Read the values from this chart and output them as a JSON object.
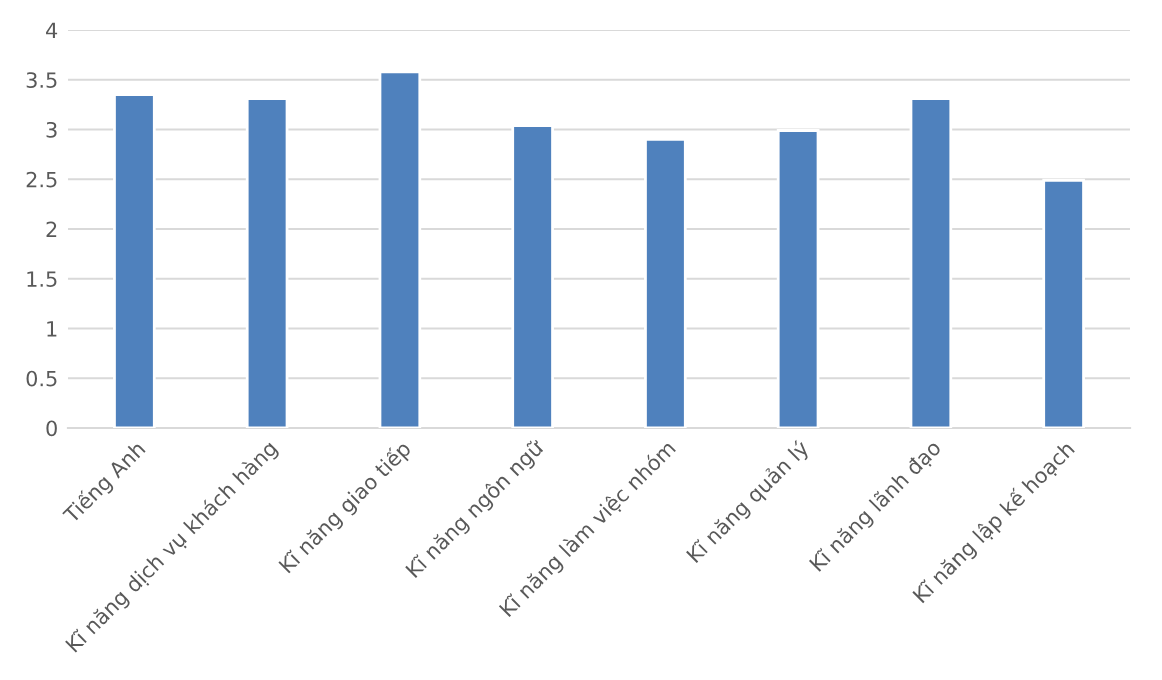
{
  "chart_data": {
    "type": "bar",
    "categories": [
      "Tiếng Anh",
      "Kĩ năng dịch vụ khách hàng",
      "Kĩ năng giao tiếp",
      "Kĩ năng ngôn ngữ",
      "Kĩ năng làm việc nhóm",
      "Kĩ năng quản lý",
      "Kĩ năng lãnh đạo",
      "Kĩ năng lập kế hoạch"
    ],
    "values": [
      3.35,
      3.31,
      3.58,
      3.04,
      2.9,
      2.99,
      3.31,
      2.49
    ],
    "color": "#4f81bd",
    "ylim": [
      0,
      4
    ],
    "yticks": [
      0,
      0.5,
      1,
      1.5,
      2,
      2.5,
      3,
      3.5,
      4
    ],
    "grid": "y"
  }
}
